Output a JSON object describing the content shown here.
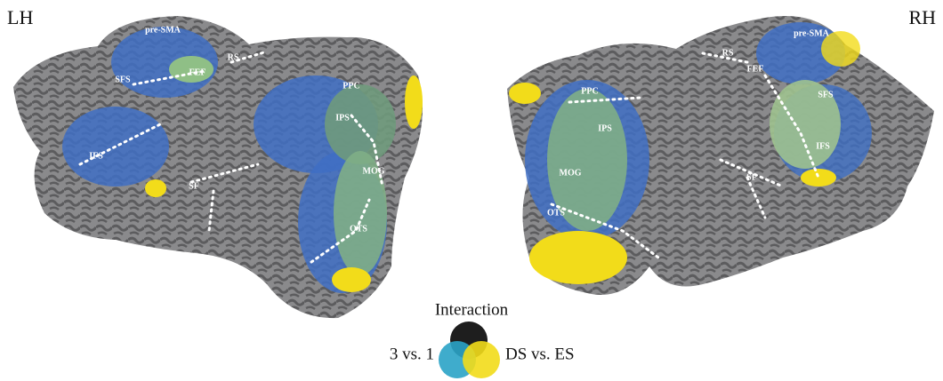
{
  "hemispheres": [
    {
      "label": "LH",
      "regions": [
        "pre-SMA",
        "FEF",
        "RS",
        "SFS",
        "PPC",
        "IPS",
        "IFS",
        "SF",
        "MOG",
        "OTS"
      ]
    },
    {
      "label": "RH",
      "regions": [
        "pre-SMA",
        "RS",
        "FEF",
        "PPC",
        "SFS",
        "IPS",
        "IFS",
        "MOG",
        "SF",
        "OTS"
      ]
    }
  ],
  "legend": {
    "title": "Interaction",
    "left": "3 vs. 1",
    "right": "DS vs. ES"
  }
}
